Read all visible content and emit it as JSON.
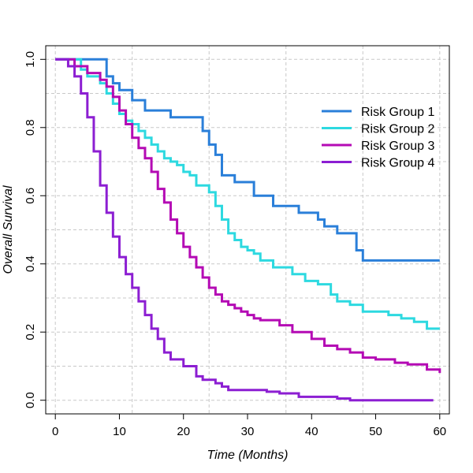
{
  "chart_data": {
    "type": "line",
    "subtype": "step",
    "title": "",
    "xlabel": "Time (Months)",
    "ylabel": "Overall Survival",
    "xlim": [
      0,
      60
    ],
    "ylim": [
      0,
      1.0
    ],
    "xticks": [
      0,
      10,
      20,
      30,
      40,
      50,
      60
    ],
    "yticks": [
      "0.0",
      "0.2",
      "0.4",
      "0.6",
      "0.8",
      "1.0"
    ],
    "grid": true,
    "legend_position": "top-right",
    "series": [
      {
        "name": "Risk Group 1",
        "color": "#2a7fd9",
        "x": [
          0,
          4,
          8,
          9,
          10,
          12,
          14,
          18,
          23,
          24,
          25,
          26,
          28,
          31,
          34,
          38,
          41,
          42,
          44,
          47,
          48,
          60
        ],
        "y": [
          1.0,
          1.0,
          0.95,
          0.93,
          0.91,
          0.88,
          0.85,
          0.83,
          0.79,
          0.75,
          0.72,
          0.66,
          0.64,
          0.6,
          0.57,
          0.55,
          0.53,
          0.51,
          0.49,
          0.44,
          0.41,
          0.41
        ]
      },
      {
        "name": "Risk Group 2",
        "color": "#2dd9e0",
        "x": [
          0,
          2,
          4,
          5,
          7,
          8,
          9,
          10,
          11,
          12,
          13,
          14,
          15,
          16,
          17,
          18,
          19,
          20,
          21,
          22,
          24,
          25,
          26,
          27,
          28,
          29,
          30,
          31,
          32,
          34,
          37,
          39,
          41,
          43,
          44,
          46,
          48,
          50,
          52,
          54,
          56,
          58,
          60
        ],
        "y": [
          1.0,
          1.0,
          0.97,
          0.95,
          0.93,
          0.9,
          0.87,
          0.84,
          0.82,
          0.81,
          0.79,
          0.77,
          0.75,
          0.73,
          0.71,
          0.7,
          0.69,
          0.67,
          0.66,
          0.63,
          0.61,
          0.57,
          0.53,
          0.49,
          0.47,
          0.45,
          0.44,
          0.43,
          0.41,
          0.39,
          0.37,
          0.35,
          0.34,
          0.31,
          0.29,
          0.28,
          0.26,
          0.26,
          0.25,
          0.24,
          0.23,
          0.21,
          0.21
        ]
      },
      {
        "name": "Risk Group 3",
        "color": "#b40ab4",
        "x": [
          0,
          3,
          5,
          7,
          8,
          9,
          10,
          11,
          12,
          13,
          14,
          15,
          16,
          17,
          18,
          19,
          20,
          21,
          22,
          23,
          24,
          25,
          26,
          27,
          28,
          29,
          30,
          31,
          32,
          35,
          37,
          40,
          42,
          44,
          46,
          48,
          50,
          53,
          55,
          58,
          60
        ],
        "y": [
          1.0,
          0.98,
          0.96,
          0.94,
          0.92,
          0.89,
          0.85,
          0.81,
          0.77,
          0.74,
          0.71,
          0.67,
          0.62,
          0.58,
          0.53,
          0.49,
          0.45,
          0.42,
          0.39,
          0.36,
          0.33,
          0.31,
          0.29,
          0.28,
          0.27,
          0.26,
          0.25,
          0.24,
          0.235,
          0.22,
          0.2,
          0.18,
          0.16,
          0.15,
          0.14,
          0.125,
          0.12,
          0.11,
          0.105,
          0.09,
          0.08
        ]
      },
      {
        "name": "Risk Group 4",
        "color": "#8c1ed2",
        "x": [
          0,
          2,
          3,
          4,
          5,
          6,
          7,
          8,
          9,
          10,
          11,
          12,
          13,
          14,
          15,
          16,
          17,
          18,
          20,
          22,
          23,
          25,
          26,
          27,
          29,
          33,
          35,
          38,
          42,
          44,
          46,
          48,
          51,
          53,
          56,
          58,
          59
        ],
        "y": [
          1.0,
          0.98,
          0.95,
          0.9,
          0.83,
          0.73,
          0.63,
          0.55,
          0.48,
          0.42,
          0.37,
          0.33,
          0.29,
          0.25,
          0.21,
          0.18,
          0.14,
          0.12,
          0.1,
          0.07,
          0.06,
          0.05,
          0.04,
          0.03,
          0.03,
          0.025,
          0.02,
          0.01,
          0.01,
          0.005,
          0.0,
          0.0,
          0.0,
          0.0,
          0.0,
          0.0,
          0.0
        ]
      }
    ]
  }
}
